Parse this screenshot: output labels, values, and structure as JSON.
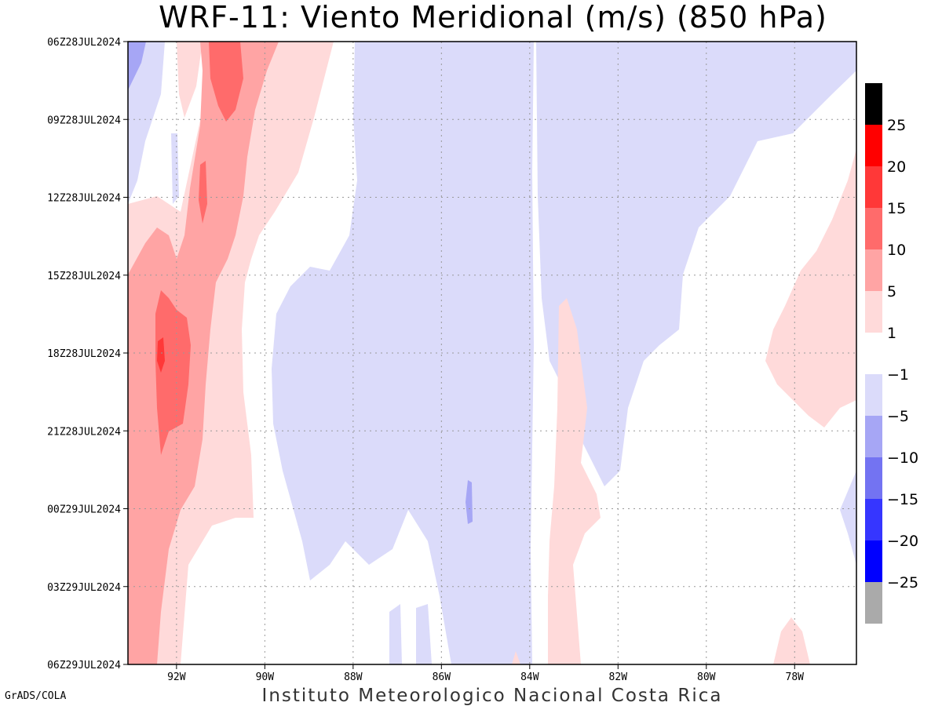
{
  "title": "WRF-11: Viento Meridional (m/s) (850 hPa)",
  "credit_left": "GrADS/COLA",
  "credit_bottom": "Instituto Meteorologico Nacional Costa Rica",
  "chart_data": {
    "type": "heatmap",
    "title": "WRF-11: Viento Meridional (m/s) (850 hPa)",
    "x_axis": {
      "ticks": [
        -92,
        -90,
        -88,
        -86,
        -84,
        -82,
        -80,
        -78
      ],
      "tick_labels": [
        "92W",
        "90W",
        "88W",
        "86W",
        "84W",
        "82W",
        "80W",
        "78W"
      ],
      "range": [
        -93.1,
        -76.6
      ]
    },
    "y_axis": {
      "tick_labels": [
        "06Z28JUL2024",
        "09Z28JUL2024",
        "12Z28JUL2024",
        "15Z28JUL2024",
        "18Z28JUL2024",
        "21Z28JUL2024",
        "00Z29JUL2024",
        "03Z29JUL2024",
        "06Z29JUL2024"
      ],
      "range_hours": [
        0,
        24
      ],
      "orientation": "time increasing downward"
    },
    "grid": true,
    "colorbar": {
      "positive": [
        {
          "label": "25",
          "color": "#ff0000"
        },
        {
          "label": "20",
          "color": "#ff3838"
        },
        {
          "label": "15",
          "color": "#ff6b6b"
        },
        {
          "label": "10",
          "color": "#ffa4a4"
        },
        {
          "label": "5",
          "color": "#ffdada"
        },
        {
          "label": "1",
          "color": "#ffffff"
        }
      ],
      "top_color": "#000000",
      "negative": [
        {
          "label": "-1",
          "color": "#dbdbfa"
        },
        {
          "label": "-5",
          "color": "#a6a6f5"
        },
        {
          "label": "-10",
          "color": "#7373f2"
        },
        {
          "label": "-15",
          "color": "#3636ff"
        },
        {
          "label": "-20",
          "color": "#0000ff"
        },
        {
          "label": "-25",
          "color": "#aaaaaa"
        }
      ]
    },
    "field_summary": [
      {
        "region": "93W-89.5W, full period",
        "value_range": "positive 1 to 15, max ~15+ near 92.2W at 18Z28JUL"
      },
      {
        "region": "89.5W-83.8W, 15Z28JUL-03Z29JUL",
        "value_range": "-1 to -5, local -5 to -10 near 85.4W 00Z29JUL"
      },
      {
        "region": "83.5W-82.5W, 18Z28JUL-06Z29JUL",
        "value_range": "1 to 5"
      },
      {
        "region": "83W-79W, 06Z-21Z28JUL",
        "value_range": "-1 to -5"
      },
      {
        "region": "79W-76.6W, 14Z-22Z28JUL",
        "value_range": "1 to 5"
      }
    ]
  }
}
